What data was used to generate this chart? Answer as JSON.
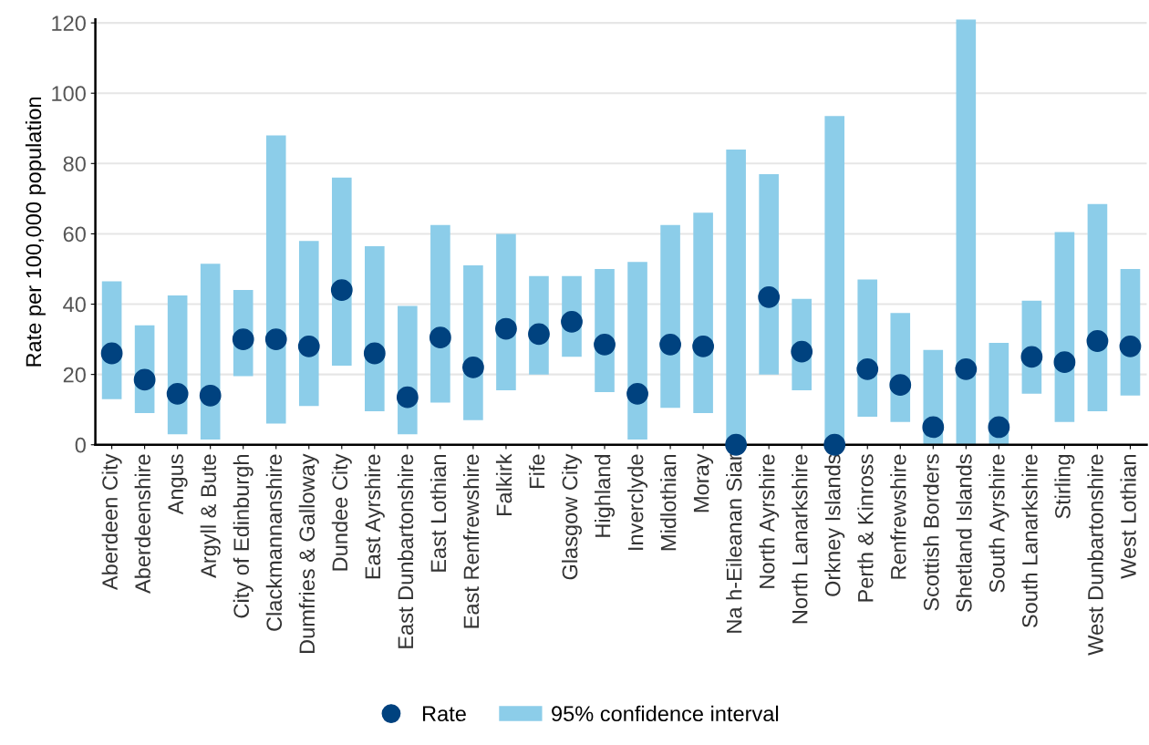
{
  "chart_data": {
    "type": "bar",
    "ylabel": "Rate per 100,000 population",
    "categories": [
      "Aberdeen City",
      "Aberdeenshire",
      "Angus",
      "Argyll & Bute",
      "City of Edinburgh",
      "Clackmannanshire",
      "Dumfries & Galloway",
      "Dundee City",
      "East Ayrshire",
      "East Dunbartonshire",
      "East Lothian",
      "East Renfrewshire",
      "Falkirk",
      "Fife",
      "Glasgow City",
      "Highland",
      "Inverclyde",
      "Midlothian",
      "Moray",
      "Na h-Eileanan Siar",
      "North Ayrshire",
      "North Lanarkshire",
      "Orkney Islands",
      "Perth & Kinross",
      "Renfrewshire",
      "Scottish Borders",
      "Shetland Islands",
      "South Ayrshire",
      "South Lanarkshire",
      "Stirling",
      "West Dunbartonshire",
      "West Lothian"
    ],
    "series": [
      {
        "name": "95% confidence interval",
        "color": "#8ccde9",
        "base": [
          13,
          9,
          3,
          1.5,
          19.5,
          6,
          11,
          22.5,
          9.5,
          3,
          12,
          7,
          15.5,
          20,
          25,
          15,
          1.5,
          10.5,
          9,
          0,
          20,
          15.5,
          0,
          8,
          6.5,
          0,
          0,
          0,
          14.5,
          6.5,
          9.5,
          14
        ],
        "values": [
          33.5,
          25,
          39.5,
          50,
          24.5,
          82,
          47,
          53.5,
          47,
          36.5,
          50.5,
          44,
          44.5,
          28,
          23,
          35,
          50.5,
          52,
          57,
          84,
          57,
          26,
          93.5,
          39,
          31,
          27,
          121,
          29,
          26.5,
          54,
          59,
          36
        ]
      },
      {
        "name": "Rate",
        "type": "scatter",
        "color": "#00427f",
        "marker": "circle",
        "values": [
          26,
          18.5,
          14.5,
          14,
          30,
          30,
          28,
          44,
          26,
          13.5,
          30.5,
          22,
          33,
          31.5,
          35,
          28.5,
          14.5,
          28.5,
          28,
          0,
          42,
          26.5,
          0,
          21.5,
          17,
          5,
          21.5,
          5,
          25,
          23.5,
          29.5,
          28
        ]
      }
    ],
    "ylim": [
      0,
      121
    ],
    "yticks": [
      0,
      20,
      40,
      60,
      80,
      100,
      120
    ],
    "grid": "y",
    "legend": "bottom"
  }
}
